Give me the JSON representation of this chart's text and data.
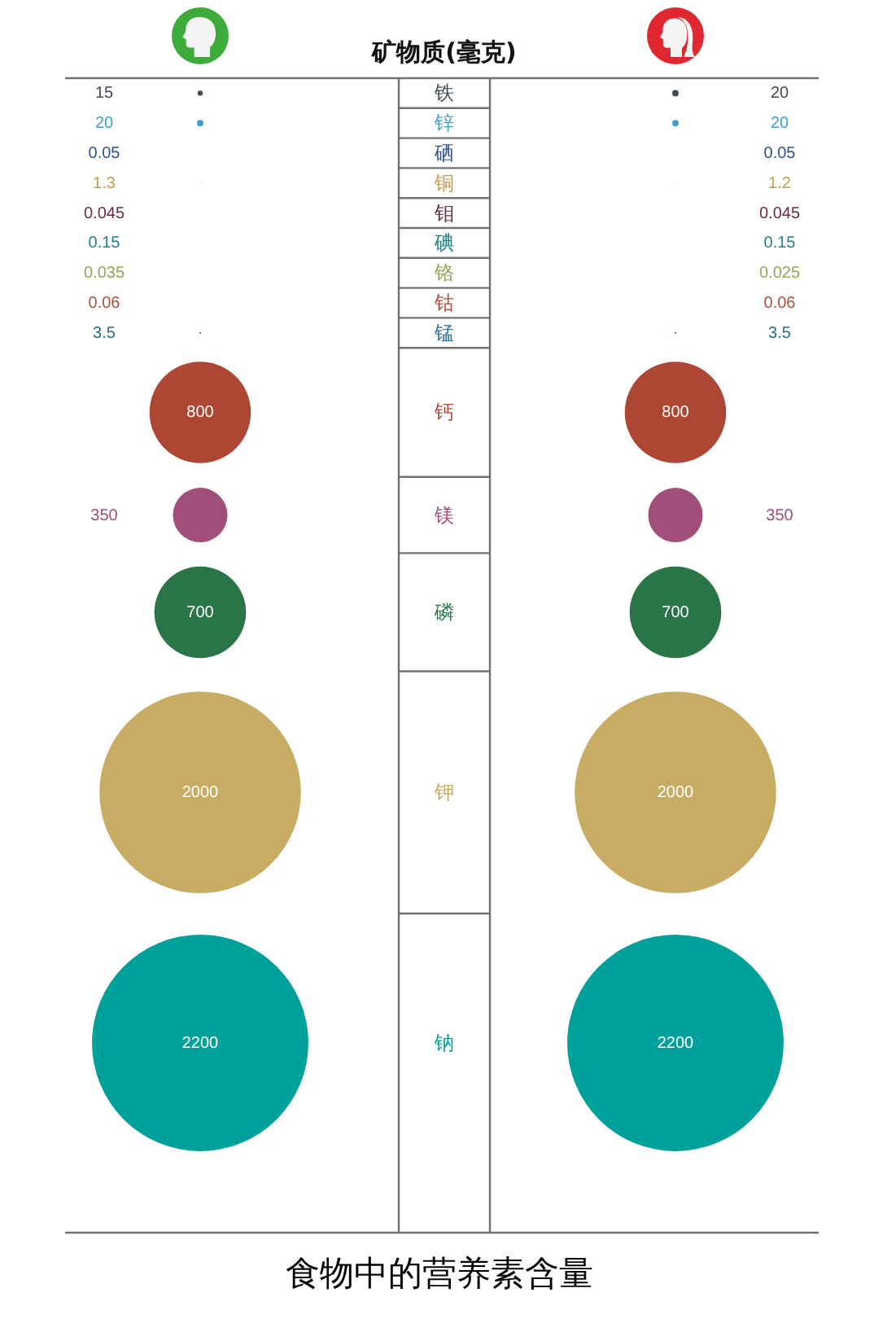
{
  "chart_data": {
    "type": "other",
    "title": "矿物质(毫克)",
    "categories": [
      "铁",
      "锌",
      "硒",
      "铜",
      "钼",
      "碘",
      "铬",
      "钴",
      "锰",
      "钙",
      "镁",
      "磷",
      "钾",
      "钠"
    ],
    "series": [
      {
        "values": [
          15,
          20,
          0.05,
          1.3,
          0.045,
          0.15,
          0.035,
          0.06,
          3.5,
          800,
          350,
          700,
          2000,
          2200
        ],
        "colors": [
          "#3f4a52",
          "#3a9fd0",
          "#2e4f8c",
          "#c99a50",
          "#6b2a42",
          "#1f7f88",
          "#9ba356",
          "#a9503c",
          "#2b6e99",
          "#ad4633",
          "#a04f7a",
          "#2a7548",
          "#c8ac63",
          "#00a19a"
        ]
      },
      {
        "values": [
          20,
          20,
          0.05,
          1.2,
          0.045,
          0.15,
          0.025,
          0.06,
          3.5,
          800,
          350,
          700,
          2000,
          2200
        ],
        "colors": [
          "#3f4a52",
          "#3a9fd0",
          "#2e4f8c",
          "#c99a50",
          "#6b2a42",
          "#1f7f88",
          "#9ba356",
          "#a9503c",
          "#2b6e99",
          "#ad4633",
          "#a04f7a",
          "#2a7548",
          "#c8ac63",
          "#00a19a"
        ]
      }
    ],
    "data_labels": true,
    "annotations": [
      "食物中的营养素含量"
    ]
  }
}
